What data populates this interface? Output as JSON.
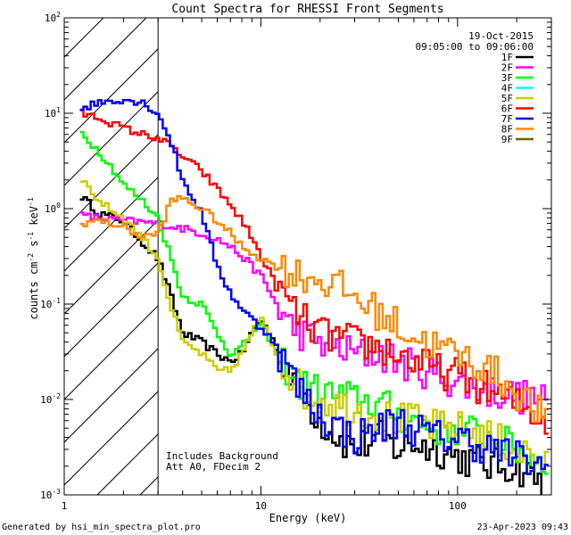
{
  "chart_data": {
    "type": "line",
    "title": "Count Spectra for RHESSI Front Segments",
    "xlabel": "Energy (keV)",
    "ylabel_main": "counts cm",
    "ylabel_sup1": "-2",
    "ylabel_mid": " s",
    "ylabel_sup2": "-1",
    "ylabel_end": " keV",
    "ylabel_sup3": "-1",
    "xscale": "log",
    "yscale": "log",
    "xlim": [
      1,
      300
    ],
    "ylim": [
      0.001,
      100
    ],
    "x_ticks": [
      {
        "value": 1,
        "label": "1"
      },
      {
        "value": 10,
        "label": "10"
      },
      {
        "value": 100,
        "label": "100"
      }
    ],
    "y_ticks": [
      {
        "value": 0.001,
        "mantissa": "10",
        "exp": "-3"
      },
      {
        "value": 0.01,
        "mantissa": "10",
        "exp": "-2"
      },
      {
        "value": 0.1,
        "mantissa": "10",
        "exp": "-1"
      },
      {
        "value": 1,
        "mantissa": "10",
        "exp": "0"
      },
      {
        "value": 10,
        "mantissa": "10",
        "exp": "1"
      },
      {
        "value": 100,
        "mantissa": "10",
        "exp": "2"
      }
    ],
    "hatched_region_max_energy": 3,
    "date": "19-Oct-2015",
    "time_range": "09:05:00 to 09:06:00",
    "legend_position": "top-right",
    "annotations": [
      "Includes Background",
      "Att A0, FDecim 2"
    ],
    "footer_left": "Generated by hsi_min_spectra_plot.pro",
    "footer_right": "23-Apr-2023 09:43",
    "series": [
      {
        "name": "1F",
        "color": "#000000",
        "points": [
          [
            1.2,
            1.4
          ],
          [
            1.5,
            0.9
          ],
          [
            2,
            0.75
          ],
          [
            2.5,
            0.45
          ],
          [
            3,
            0.3
          ],
          [
            3.5,
            0.12
          ],
          [
            4,
            0.05
          ],
          [
            5,
            0.04
          ],
          [
            6,
            0.03
          ],
          [
            7,
            0.025
          ],
          [
            8,
            0.03
          ],
          [
            9,
            0.05
          ],
          [
            10,
            0.07
          ],
          [
            11,
            0.05
          ],
          [
            12,
            0.035
          ],
          [
            14,
            0.02
          ],
          [
            16,
            0.012
          ],
          [
            20,
            0.006
          ],
          [
            25,
            0.004
          ],
          [
            30,
            0.003
          ],
          [
            40,
            0.004
          ],
          [
            50,
            0.003
          ],
          [
            60,
            0.0035
          ],
          [
            80,
            0.003
          ],
          [
            100,
            0.0025
          ],
          [
            150,
            0.002
          ],
          [
            200,
            0.002
          ],
          [
            250,
            0.0015
          ],
          [
            290,
            0.0012
          ]
        ]
      },
      {
        "name": "2F",
        "color": "#ff00ff",
        "points": [
          [
            1.2,
            0.85
          ],
          [
            1.5,
            0.8
          ],
          [
            2,
            0.75
          ],
          [
            3,
            0.7
          ],
          [
            4,
            0.62
          ],
          [
            5,
            0.55
          ],
          [
            6,
            0.48
          ],
          [
            7,
            0.4
          ],
          [
            8,
            0.32
          ],
          [
            10,
            0.2
          ],
          [
            12,
            0.1
          ],
          [
            14,
            0.06
          ],
          [
            16,
            0.05
          ],
          [
            20,
            0.04
          ],
          [
            30,
            0.03
          ],
          [
            40,
            0.03
          ],
          [
            50,
            0.025
          ],
          [
            60,
            0.022
          ],
          [
            80,
            0.018
          ],
          [
            100,
            0.015
          ],
          [
            150,
            0.012
          ],
          [
            200,
            0.011
          ],
          [
            250,
            0.01
          ],
          [
            290,
            0.009
          ]
        ]
      },
      {
        "name": "3F",
        "color": "#00ff00",
        "points": [
          [
            1.2,
            6.5
          ],
          [
            1.5,
            4
          ],
          [
            1.8,
            2.5
          ],
          [
            2,
            1.8
          ],
          [
            2.5,
            1.2
          ],
          [
            3,
            0.8
          ],
          [
            3.5,
            0.3
          ],
          [
            4,
            0.12
          ],
          [
            5,
            0.1
          ],
          [
            6,
            0.05
          ],
          [
            7,
            0.03
          ],
          [
            8,
            0.035
          ],
          [
            9,
            0.05
          ],
          [
            10,
            0.06
          ],
          [
            11,
            0.045
          ],
          [
            12,
            0.03
          ],
          [
            14,
            0.02
          ],
          [
            16,
            0.014
          ],
          [
            20,
            0.012
          ],
          [
            30,
            0.01
          ],
          [
            40,
            0.009
          ],
          [
            50,
            0.007
          ],
          [
            60,
            0.006
          ],
          [
            80,
            0.005
          ],
          [
            100,
            0.005
          ],
          [
            150,
            0.004
          ],
          [
            200,
            0.003
          ],
          [
            250,
            0.0025
          ],
          [
            290,
            0.002
          ]
        ]
      },
      {
        "name": "4F",
        "color": "#00ffff",
        "points": []
      },
      {
        "name": "5F",
        "color": "#cccc00",
        "points": [
          [
            1.2,
            2.2
          ],
          [
            1.5,
            1.2
          ],
          [
            2,
            0.8
          ],
          [
            2.5,
            0.5
          ],
          [
            3,
            0.3
          ],
          [
            3.5,
            0.09
          ],
          [
            4,
            0.04
          ],
          [
            5,
            0.03
          ],
          [
            6,
            0.02
          ],
          [
            7,
            0.02
          ],
          [
            8,
            0.03
          ],
          [
            9,
            0.05
          ],
          [
            10,
            0.07
          ],
          [
            11,
            0.05
          ],
          [
            12,
            0.03
          ],
          [
            14,
            0.02
          ],
          [
            16,
            0.012
          ],
          [
            20,
            0.01
          ],
          [
            30,
            0.008
          ],
          [
            40,
            0.007
          ],
          [
            50,
            0.006
          ],
          [
            60,
            0.006
          ],
          [
            80,
            0.005
          ],
          [
            100,
            0.005
          ],
          [
            150,
            0.004
          ],
          [
            200,
            0.003
          ],
          [
            250,
            0.0025
          ],
          [
            290,
            0.002
          ]
        ]
      },
      {
        "name": "6F",
        "color": "#ff0000",
        "points": [
          [
            1.2,
            10
          ],
          [
            1.5,
            9
          ],
          [
            2,
            7
          ],
          [
            2.5,
            6
          ],
          [
            3,
            5.5
          ],
          [
            3.5,
            4.5
          ],
          [
            4,
            3.5
          ],
          [
            5,
            2.5
          ],
          [
            6,
            1.6
          ],
          [
            7,
            1.1
          ],
          [
            8,
            0.75
          ],
          [
            9,
            0.5
          ],
          [
            10,
            0.32
          ],
          [
            11,
            0.22
          ],
          [
            12,
            0.15
          ],
          [
            14,
            0.1
          ],
          [
            16,
            0.07
          ],
          [
            20,
            0.05
          ],
          [
            30,
            0.04
          ],
          [
            40,
            0.035
          ],
          [
            50,
            0.03
          ],
          [
            60,
            0.025
          ],
          [
            80,
            0.02
          ],
          [
            100,
            0.018
          ],
          [
            150,
            0.012
          ],
          [
            200,
            0.009
          ],
          [
            250,
            0.007
          ],
          [
            290,
            0.006
          ]
        ]
      },
      {
        "name": "7F",
        "color": "#0000ff",
        "points": [
          [
            1.2,
            11
          ],
          [
            1.5,
            13
          ],
          [
            2,
            14
          ],
          [
            2.5,
            13
          ],
          [
            3,
            10
          ],
          [
            3.5,
            5
          ],
          [
            4,
            2
          ],
          [
            5,
            0.9
          ],
          [
            6,
            0.25
          ],
          [
            7,
            0.13
          ],
          [
            8,
            0.09
          ],
          [
            9,
            0.07
          ],
          [
            10,
            0.055
          ],
          [
            11,
            0.05
          ],
          [
            12,
            0.035
          ],
          [
            14,
            0.02
          ],
          [
            16,
            0.012
          ],
          [
            20,
            0.007
          ],
          [
            25,
            0.005
          ],
          [
            30,
            0.004
          ],
          [
            40,
            0.005
          ],
          [
            50,
            0.006
          ],
          [
            60,
            0.005
          ],
          [
            80,
            0.004
          ],
          [
            100,
            0.004
          ],
          [
            150,
            0.003
          ],
          [
            200,
            0.0025
          ],
          [
            250,
            0.002
          ],
          [
            290,
            0.0018
          ]
        ]
      },
      {
        "name": "8F",
        "color": "#ff8800",
        "points": [
          [
            1.2,
            0.7
          ],
          [
            1.5,
            0.75
          ],
          [
            2,
            0.65
          ],
          [
            2.5,
            0.5
          ],
          [
            3,
            0.55
          ],
          [
            3.5,
            1.2
          ],
          [
            4,
            1.3
          ],
          [
            5,
            1.0
          ],
          [
            6,
            0.75
          ],
          [
            7,
            0.55
          ],
          [
            8,
            0.4
          ],
          [
            9,
            0.35
          ],
          [
            10,
            0.3
          ],
          [
            12,
            0.25
          ],
          [
            14,
            0.22
          ],
          [
            16,
            0.2
          ],
          [
            20,
            0.18
          ],
          [
            25,
            0.15
          ],
          [
            30,
            0.12
          ],
          [
            40,
            0.08
          ],
          [
            50,
            0.06
          ],
          [
            60,
            0.045
          ],
          [
            80,
            0.035
          ],
          [
            100,
            0.03
          ],
          [
            150,
            0.02
          ],
          [
            200,
            0.012
          ],
          [
            250,
            0.008
          ],
          [
            290,
            0.006
          ]
        ]
      },
      {
        "name": "9F",
        "color": "#666600",
        "points": []
      }
    ]
  }
}
